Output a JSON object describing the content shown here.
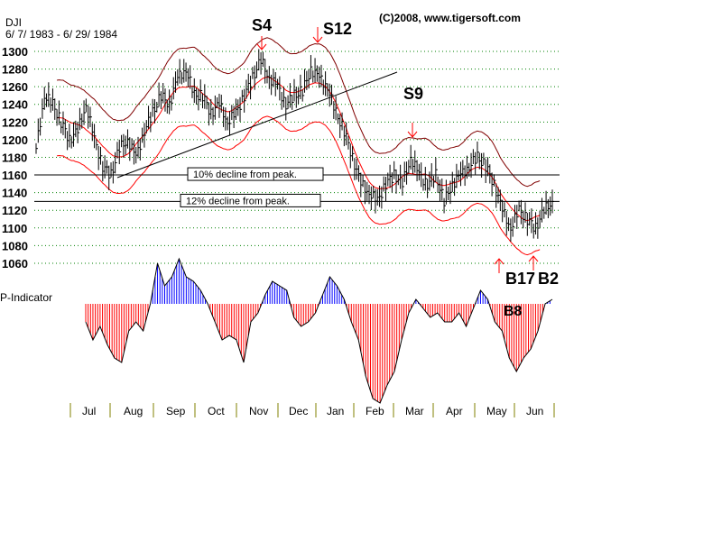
{
  "chart_data": {
    "type": "bar",
    "title": "DJI",
    "subtitle": "6/ 7/ 1983 - 6/ 29/ 1984",
    "copyright": "(C)2008, www.tigersoft.com",
    "ylim": [
      1060,
      1300
    ],
    "yticks": [
      1300,
      1280,
      1260,
      1240,
      1220,
      1200,
      1180,
      1160,
      1140,
      1120,
      1100,
      1080,
      1060
    ],
    "months": [
      "Jul",
      "Aug",
      "Sep",
      "Oct",
      "Nov",
      "Dec",
      "Jan",
      "Feb",
      "Mar",
      "Apr",
      "May",
      "Jun"
    ],
    "weekly_close": [
      1190,
      1250,
      1240,
      1220,
      1200,
      1210,
      1240,
      1200,
      1170,
      1160,
      1190,
      1200,
      1180,
      1210,
      1230,
      1250,
      1240,
      1270,
      1280,
      1250,
      1250,
      1230,
      1240,
      1220,
      1230,
      1250,
      1270,
      1290,
      1270,
      1260,
      1240,
      1250,
      1255,
      1280,
      1270,
      1260,
      1230,
      1210,
      1180,
      1150,
      1140,
      1130,
      1150,
      1160,
      1150,
      1180,
      1160,
      1150,
      1160,
      1130,
      1150,
      1160,
      1170,
      1180,
      1170,
      1150,
      1120,
      1100,
      1120,
      1110,
      1100,
      1120,
      1130
    ],
    "reference_lines": [
      {
        "value": 1160,
        "label": "10% decline from peak."
      },
      {
        "value": 1130,
        "label": "12% decline from peak."
      }
    ],
    "signals": [
      {
        "label": "S4",
        "type": "sell"
      },
      {
        "label": "S12",
        "type": "sell"
      },
      {
        "label": "S9",
        "type": "sell"
      },
      {
        "label": "B17",
        "type": "buy"
      },
      {
        "label": "B2",
        "type": "buy"
      },
      {
        "label": "B8",
        "type": "buy"
      }
    ],
    "indicator": {
      "name": "P-Indicator",
      "values": [
        -20,
        -40,
        -25,
        -45,
        -60,
        -65,
        -30,
        -20,
        -30,
        0,
        45,
        20,
        30,
        50,
        30,
        25,
        15,
        0,
        -20,
        -40,
        -35,
        -40,
        -65,
        -20,
        -10,
        10,
        25,
        20,
        15,
        -15,
        -25,
        -20,
        -10,
        10,
        30,
        20,
        5,
        -20,
        -40,
        -80,
        -105,
        -110,
        -90,
        -75,
        -40,
        -10,
        5,
        -5,
        -15,
        -10,
        -20,
        -20,
        -10,
        -25,
        -5,
        15,
        5,
        -20,
        -30,
        -60,
        -75,
        -60,
        -50,
        -30,
        0,
        5
      ]
    }
  },
  "colors": {
    "grid": "#008000",
    "band_outer": "#800000",
    "band_mid": "#ff0000",
    "pos": "#0000ff",
    "neg": "#ff0000"
  }
}
